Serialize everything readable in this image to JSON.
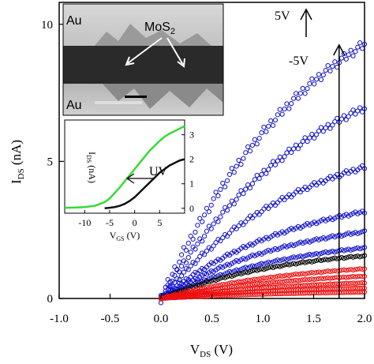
{
  "chart_data": {
    "type": "scatter",
    "xlabel": "V",
    "xlabel_sub": "DS",
    "xlabel_unit": " (V)",
    "ylabel": "I",
    "ylabel_sub": "DS",
    "ylabel_unit": " (nA)",
    "xlim": [
      -1.0,
      2.0
    ],
    "ylim": [
      0,
      10.8
    ],
    "xticks": [
      -1.0,
      -0.5,
      0.0,
      0.5,
      1.0,
      1.5,
      2.0
    ],
    "xtick_labels": [
      "-1.0",
      "-0.5",
      "0.0",
      "0.5",
      "1.0",
      "1.5",
      "2.0"
    ],
    "yticks": [
      0,
      5,
      10
    ],
    "ytick_labels": [
      "0",
      "5",
      "10"
    ],
    "grid": false,
    "curve_model": "I = Imax*(1-exp(-V/v0))",
    "series": [
      {
        "color": "#1010cc",
        "Imax": 13.0,
        "v0": 1.6,
        "points": 90
      },
      {
        "color": "#1010cc",
        "Imax": 9.6,
        "v0": 1.55,
        "points": 90
      },
      {
        "color": "#1010cc",
        "Imax": 6.3,
        "v0": 1.4,
        "points": 90
      },
      {
        "color": "#1010cc",
        "Imax": 4.1,
        "v0": 1.35,
        "points": 90
      },
      {
        "color": "#1010cc",
        "Imax": 3.1,
        "v0": 1.3,
        "points": 90
      },
      {
        "color": "#1010cc",
        "Imax": 2.35,
        "v0": 1.3,
        "points": 90
      },
      {
        "color": "#000000",
        "Imax": 1.95,
        "v0": 1.25,
        "points": 90
      },
      {
        "color": "#ee1111",
        "Imax": 1.4,
        "v0": 1.35,
        "points": 90
      },
      {
        "color": "#ee1111",
        "Imax": 1.05,
        "v0": 1.35,
        "points": 90
      },
      {
        "color": "#ee1111",
        "Imax": 0.75,
        "v0": 1.4,
        "points": 90
      },
      {
        "color": "#ee1111",
        "Imax": 0.5,
        "v0": 1.4,
        "points": 90
      },
      {
        "color": "#ee1111",
        "Imax": 0.3,
        "v0": 1.4,
        "points": 90
      }
    ],
    "annotations": {
      "top": "5V",
      "bottom": "-5V",
      "arrow_x": 1.75
    },
    "inset": {
      "xlabel": "V",
      "xlabel_sub": "GS",
      "xlabel_unit": " (V)",
      "ylabel": "I",
      "ylabel_sub": "DS",
      "ylabel_unit": " (nA)",
      "xlim": [
        -14,
        10
      ],
      "ylim": [
        -0.2,
        3.6
      ],
      "xticks": [
        -10,
        -5,
        0,
        5
      ],
      "xtick_labels": [
        "-10",
        "-5",
        "0",
        "5"
      ],
      "yticks": [
        0,
        1,
        2,
        3
      ],
      "ytick_labels": [
        "0",
        "1",
        "2",
        "3"
      ],
      "label": "UV",
      "series": [
        {
          "color": "#33dd33",
          "x": [
            -14,
            -12,
            -10,
            -8,
            -6,
            -5,
            -4,
            -3,
            -2,
            -1,
            0,
            1,
            2,
            3,
            4,
            5,
            6,
            7,
            8,
            9,
            10
          ],
          "y": [
            0.02,
            0.03,
            0.05,
            0.1,
            0.25,
            0.4,
            0.62,
            0.85,
            1.1,
            1.35,
            1.6,
            1.85,
            2.1,
            2.35,
            2.55,
            2.75,
            2.92,
            3.05,
            3.15,
            3.25,
            3.35
          ]
        },
        {
          "color": "#111111",
          "x": [
            -6,
            -5,
            -4,
            -3,
            -2,
            -1,
            0,
            1,
            2,
            3,
            4,
            5,
            6,
            7,
            8,
            9,
            10
          ],
          "y": [
            0.0,
            0.02,
            0.05,
            0.1,
            0.18,
            0.3,
            0.45,
            0.65,
            0.85,
            1.05,
            1.25,
            1.45,
            1.6,
            1.75,
            1.85,
            1.95,
            2.0
          ]
        }
      ]
    }
  },
  "micrograph": {
    "label_top": "Au",
    "label_bottom": "Au",
    "material": "MoS",
    "material_sub": "2"
  }
}
